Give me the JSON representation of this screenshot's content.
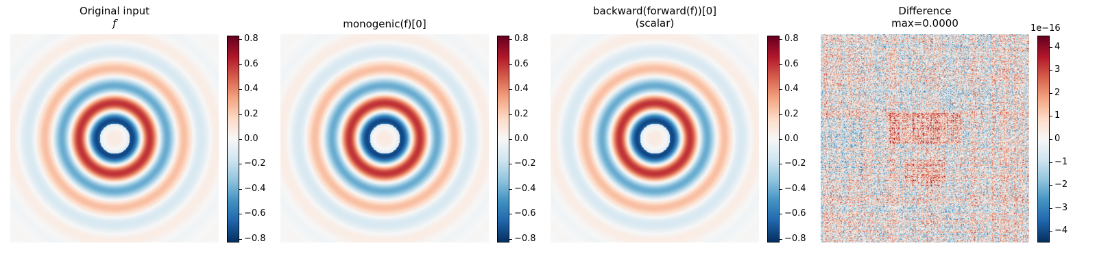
{
  "chart_data": [
    {
      "type": "heatmap",
      "title": "Original input",
      "subtitle": "f",
      "colormap": "RdBu_r",
      "pattern": "radial damped oscillation (concentric rings)",
      "colorbar": {
        "range": [
          -0.83,
          0.83
        ],
        "ticks": [
          0.8,
          0.6,
          0.4,
          0.2,
          0.0,
          -0.2,
          -0.4,
          -0.6,
          -0.8
        ],
        "tick_labels": [
          "0.8",
          "0.6",
          "0.4",
          "0.2",
          "0.0",
          "−0.2",
          "−0.4",
          "−0.6",
          "−0.8"
        ]
      }
    },
    {
      "type": "heatmap",
      "title": "monogenic(f)[0]",
      "subtitle": "",
      "colormap": "RdBu_r",
      "pattern": "radial damped oscillation (concentric rings)",
      "colorbar": {
        "range": [
          -0.83,
          0.83
        ],
        "ticks": [
          0.8,
          0.6,
          0.4,
          0.2,
          0.0,
          -0.2,
          -0.4,
          -0.6,
          -0.8
        ],
        "tick_labels": [
          "0.8",
          "0.6",
          "0.4",
          "0.2",
          "0.0",
          "−0.2",
          "−0.4",
          "−0.6",
          "−0.8"
        ]
      }
    },
    {
      "type": "heatmap",
      "title": "backward(forward(f))[0]",
      "subtitle": "(scalar)",
      "colormap": "RdBu_r",
      "pattern": "radial damped oscillation (concentric rings)",
      "colorbar": {
        "range": [
          -0.83,
          0.83
        ],
        "ticks": [
          0.8,
          0.6,
          0.4,
          0.2,
          0.0,
          -0.2,
          -0.4,
          -0.6,
          -0.8
        ],
        "tick_labels": [
          "0.8",
          "0.6",
          "0.4",
          "0.2",
          "0.0",
          "−0.2",
          "−0.4",
          "−0.6",
          "−0.8"
        ]
      }
    },
    {
      "type": "heatmap",
      "title": "Difference",
      "subtitle": "max=0.0000",
      "colormap": "RdBu_r",
      "pattern": "random noise",
      "colorbar": {
        "range": [
          -4.5,
          4.5
        ],
        "offset_text": "1e−16",
        "ticks": [
          4,
          3,
          2,
          1,
          0,
          -1,
          -2,
          -3,
          -4
        ],
        "tick_labels": [
          "4",
          "3",
          "2",
          "1",
          "0",
          "−1",
          "−2",
          "−3",
          "−4"
        ]
      }
    }
  ]
}
